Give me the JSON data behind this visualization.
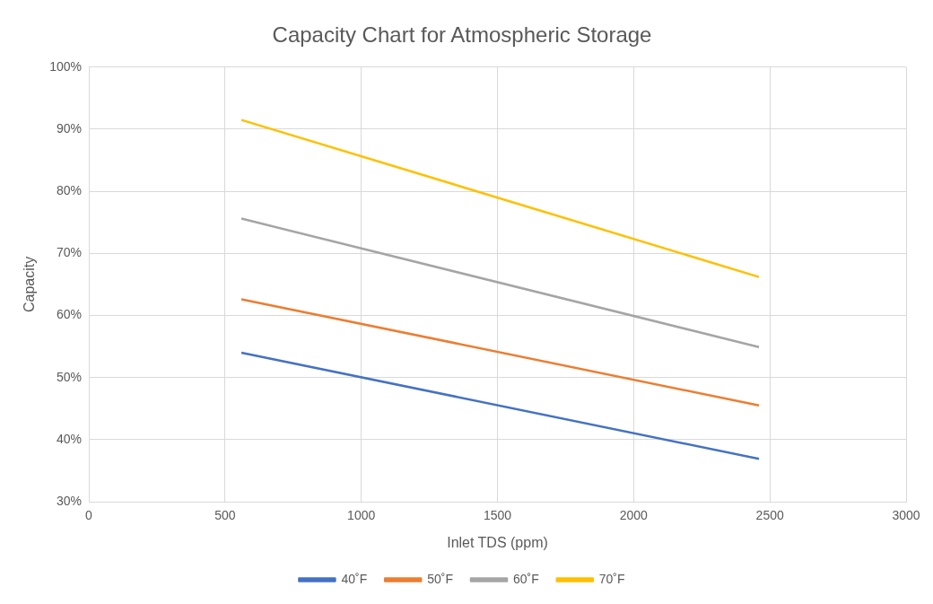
{
  "chart_data": {
    "type": "line",
    "title": "Capacity Chart for Atmospheric Storage",
    "xlabel": "Inlet TDS (ppm)",
    "ylabel": "Capacity",
    "x": [
      560,
      2460
    ],
    "series": [
      {
        "name": "40˚F",
        "color": "#4472c4",
        "values": [
          54,
          36.9
        ]
      },
      {
        "name": "50˚F",
        "color": "#ed7d31",
        "values": [
          62.6,
          45.5
        ]
      },
      {
        "name": "60˚F",
        "color": "#a5a5a5",
        "values": [
          75.6,
          54.9
        ]
      },
      {
        "name": "70˚F",
        "color": "#ffc000",
        "values": [
          91.5,
          66.2
        ]
      }
    ],
    "xlim": [
      0,
      3000
    ],
    "xticks": [
      0,
      500,
      1000,
      1500,
      2000,
      2500,
      3000
    ],
    "ylim": [
      30,
      100
    ],
    "yticks": [
      {
        "value": 30,
        "label": "30%"
      },
      {
        "value": 40,
        "label": "40%"
      },
      {
        "value": 50,
        "label": "50%"
      },
      {
        "value": 60,
        "label": "60%"
      },
      {
        "value": 70,
        "label": "70%"
      },
      {
        "value": 80,
        "label": "80%"
      },
      {
        "value": 90,
        "label": "90%"
      },
      {
        "value": 100,
        "label": "100%"
      }
    ],
    "grid": true,
    "legend": "bottom",
    "marker": "none",
    "line_style": "solid"
  }
}
